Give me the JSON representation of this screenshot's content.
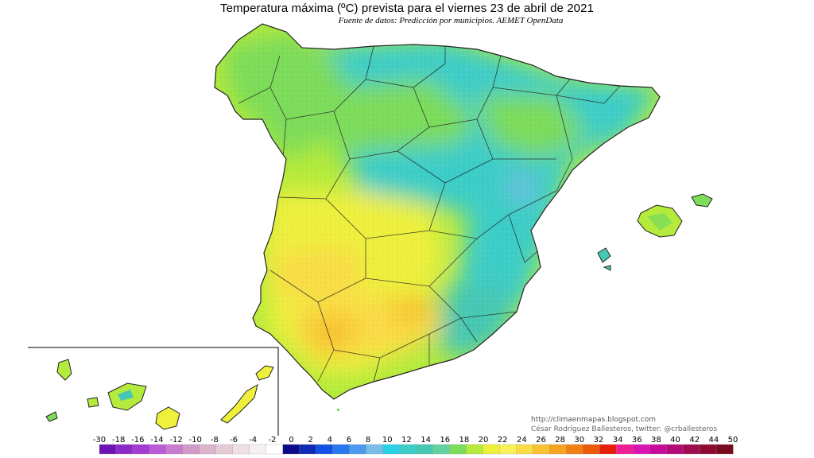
{
  "header": {
    "title": "Temperatura máxima (ºC) prevista para el viernes 23 de abril de 2021",
    "subtitle": "Fuente de datos: Predicción por municipios. AEMET OpenData"
  },
  "credits": {
    "url": "http://climaenmapas.blogspot.com",
    "author": "César Rodríguez Ballesteros, twitter: @crballesteros"
  },
  "legend": {
    "colors": [
      "#6a14b4",
      "#8c2ac8",
      "#a23cd2",
      "#b95ad8",
      "#c77cd0",
      "#d29ac8",
      "#dcb4cc",
      "#e6ccd6",
      "#eee0e4",
      "#f6f0f2",
      "#ffffff",
      "#0a0a8c",
      "#0f2ab4",
      "#1450e6",
      "#2878f0",
      "#4c9af0",
      "#78bce8",
      "#28d2e6",
      "#3ccdc8",
      "#46c8b4",
      "#64d2a0",
      "#7ddc5a",
      "#b4eb3c",
      "#eef03c",
      "#faf05a",
      "#fadc46",
      "#f8c230",
      "#f5a320",
      "#f08014",
      "#ec5a0a",
      "#e61e0a",
      "#f01e96",
      "#dc14b4",
      "#c80a9c",
      "#b40a78",
      "#a00a50",
      "#8c0a32",
      "#780a1e"
    ],
    "ticks": [
      "-30",
      "-18",
      "-16",
      "-14",
      "-12",
      "-10",
      "-8",
      "-6",
      "-4",
      "-2",
      "0",
      "2",
      "4",
      "6",
      "8",
      "10",
      "12",
      "14",
      "16",
      "18",
      "20",
      "22",
      "24",
      "26",
      "28",
      "30",
      "32",
      "34",
      "36",
      "38",
      "40",
      "42",
      "44",
      "50"
    ]
  },
  "map": {
    "palette": {
      "hot": "#f8c230",
      "warm": "#fadc46",
      "mild": "#eef03c",
      "cool": "#b4eb3c",
      "green": "#7ddc5a",
      "teal": "#3ccdc8",
      "aqua": "#46c8b4",
      "blue": "#78bce8",
      "border": "#222222"
    }
  }
}
